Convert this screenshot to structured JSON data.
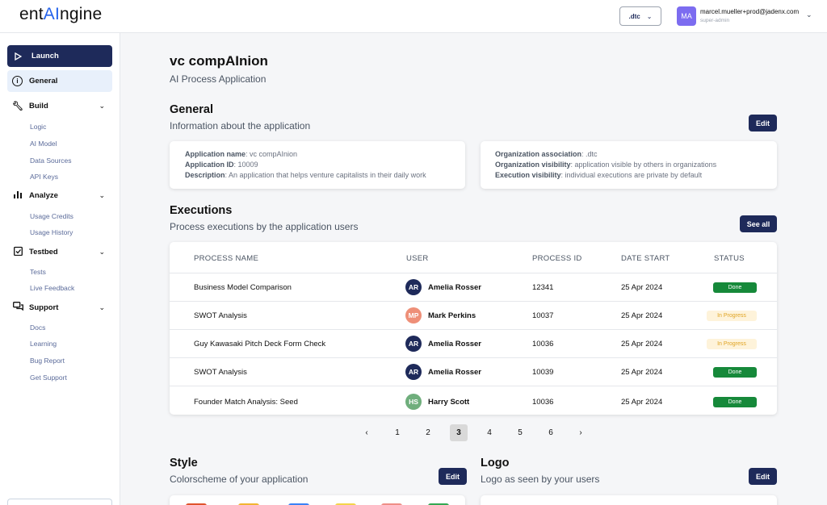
{
  "brand": {
    "pre": "ent",
    "ai": "AI",
    "post": "ngine"
  },
  "header": {
    "org_value": ".dtc",
    "avatar_initials": "MA",
    "user_email": "marcel.mueller+prod@jadenx.com",
    "user_role": "super-admin"
  },
  "sidebar": {
    "launch": "Launch",
    "general": "General",
    "groups": [
      {
        "label": "Build",
        "items": [
          "Logic",
          "AI Model",
          "Data Sources",
          "API Keys"
        ]
      },
      {
        "label": "Analyze",
        "items": [
          "Usage Credits",
          "Usage History"
        ]
      },
      {
        "label": "Testbed",
        "items": [
          "Tests",
          "Live Feedback"
        ]
      },
      {
        "label": "Support",
        "items": [
          "Docs",
          "Learning",
          "Bug Report",
          "Get Support"
        ]
      }
    ]
  },
  "page": {
    "title": "vc compAInion",
    "subtitle": "AI Process Application"
  },
  "general": {
    "title": "General",
    "subtitle": "Information about the application",
    "edit_label": "Edit",
    "left": [
      {
        "key": "Application name",
        "value": ": vc compAInion"
      },
      {
        "key": "Application ID",
        "value": ": 10009"
      },
      {
        "key": "Description",
        "value": ": An application that helps venture capitalists in their daily work"
      }
    ],
    "right": [
      {
        "key": "Organization association",
        "value": ": .dtc"
      },
      {
        "key": "Organization visibility",
        "value": ": application visible by others in organizations"
      },
      {
        "key": "Execution visibility",
        "value": ": individual executions are private by default"
      }
    ]
  },
  "executions": {
    "title": "Executions",
    "subtitle": "Process executions by the application users",
    "see_all_label": "See all",
    "columns": [
      "PROCESS NAME",
      "USER",
      "PROCESS ID",
      "DATE START",
      "STATUS"
    ],
    "rows": [
      {
        "process": "Business Model Comparison",
        "initials": "AR",
        "user": "Amelia Rosser",
        "id": "12341",
        "date": "25 Apr 2024",
        "status": "Done"
      },
      {
        "process": "SWOT Analysis",
        "initials": "MP",
        "user": "Mark Perkins",
        "id": "10037",
        "date": "25 Apr 2024",
        "status": "In Progress"
      },
      {
        "process": "Guy Kawasaki Pitch Deck Form Check",
        "initials": "AR",
        "user": "Amelia Rosser",
        "id": "10036",
        "date": "25 Apr 2024",
        "status": "In Progress"
      },
      {
        "process": "SWOT Analysis",
        "initials": "AR",
        "user": "Amelia Rosser",
        "id": "10039",
        "date": "25 Apr 2024",
        "status": "Done"
      },
      {
        "process": "Founder Match Analysis: Seed",
        "initials": "HS",
        "user": "Harry Scott",
        "id": "10036",
        "date": "25 Apr 2024",
        "status": "Done"
      }
    ],
    "pagination": {
      "prev": "‹",
      "next": "›",
      "pages": [
        "1",
        "2",
        "3",
        "4",
        "5",
        "6"
      ],
      "current": "3"
    }
  },
  "style": {
    "title": "Style",
    "subtitle": "Colorscheme  of your application",
    "edit_label": "Edit"
  },
  "logo": {
    "title": "Logo",
    "subtitle": "Logo as seen by your users",
    "edit_label": "Edit"
  },
  "colors": {
    "primary": "#1e2a5a",
    "avatar_ar": "#1e2a5a",
    "avatar_mp": "#ee8f78",
    "avatar_hs": "#6fae7c",
    "done": "#16893a",
    "in_progress_bg": "#fef3da",
    "swatches": [
      "#e0542d",
      "#f2b531",
      "#3b82f6",
      "#f4d44a",
      "#ef8f87",
      "#34a853"
    ]
  }
}
